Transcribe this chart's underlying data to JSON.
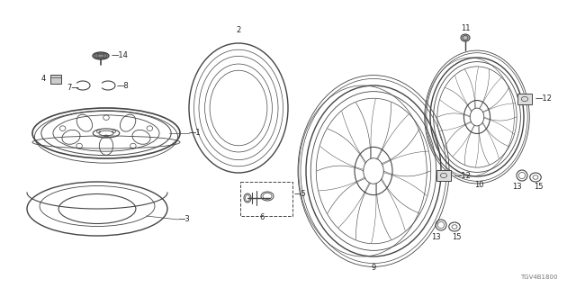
{
  "part_number": "TGV4B1800",
  "background_color": "#ffffff",
  "line_color": "#444444",
  "text_color": "#222222",
  "fig_width": 6.4,
  "fig_height": 3.2,
  "dpi": 100
}
